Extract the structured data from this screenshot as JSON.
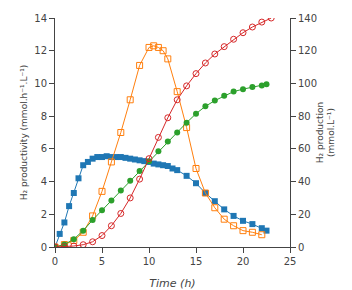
{
  "chart_data": {
    "type": "line",
    "xlabel": "Time (h)",
    "ylabel": "H₂ productivity (mmol.h⁻¹.L⁻¹)",
    "y2label": "H₂ production\n(mmol.L⁻¹)",
    "xlim": [
      0,
      25
    ],
    "ylim": [
      0,
      14
    ],
    "y2lim": [
      0,
      140
    ],
    "xticks": [
      0,
      5,
      10,
      15,
      20,
      25
    ],
    "yticks": [
      0,
      2,
      4,
      6,
      8,
      10,
      12,
      14
    ],
    "y2ticks": [
      0,
      20,
      40,
      60,
      80,
      100,
      120,
      140
    ],
    "grid": false,
    "series": [
      {
        "marker": "square",
        "x": [
          0,
          0.5,
          1,
          1.5,
          2,
          2.5,
          3,
          3.5,
          4,
          4.5,
          5,
          5.5,
          6,
          6.5,
          7,
          7.5,
          8,
          8.5,
          9,
          9.5,
          10,
          10.5,
          11,
          11.5,
          12,
          12.5,
          13,
          14,
          15,
          16,
          17,
          18,
          19,
          20,
          21,
          22,
          22.5
        ],
        "values": [
          0,
          0.8,
          1.5,
          2.5,
          3.3,
          4.2,
          5.0,
          5.2,
          5.4,
          5.5,
          5.5,
          5.55,
          5.5,
          5.5,
          5.5,
          5.45,
          5.4,
          5.35,
          5.3,
          5.25,
          5.2,
          5.1,
          5.05,
          5.0,
          4.95,
          4.8,
          4.7,
          4.35,
          3.9,
          3.3,
          2.8,
          2.3,
          1.9,
          1.6,
          1.4,
          1.15,
          1.0
        ]
      },
      {
        "marker": "square-open",
        "x": [
          0,
          1,
          2,
          3,
          4,
          5,
          6,
          7,
          8,
          9,
          10,
          10.5,
          11,
          11.5,
          12,
          13,
          14,
          15,
          16,
          17,
          18,
          19,
          20,
          21,
          22
        ],
        "values": [
          0,
          0.15,
          0.4,
          0.9,
          1.9,
          3.4,
          5.2,
          7.0,
          9.0,
          11.1,
          12.2,
          12.3,
          12.2,
          12.0,
          11.5,
          9.5,
          7.3,
          4.8,
          3.3,
          2.4,
          1.7,
          1.3,
          1.0,
          0.9,
          0.75
        ]
      },
      {
        "marker": "circle",
        "axis": "y2",
        "x": [
          0,
          1,
          2,
          3,
          4,
          5,
          6,
          7,
          8,
          9,
          10,
          11,
          12,
          13,
          14,
          15,
          16,
          17,
          18,
          19,
          20,
          21,
          22,
          22.5
        ],
        "values": [
          0,
          1.5,
          4.8,
          10.0,
          16.5,
          22.5,
          28.5,
          34.5,
          40.5,
          46.5,
          52.5,
          58.5,
          64.5,
          70.0,
          76.0,
          81.5,
          86.0,
          89.5,
          92.5,
          95.0,
          96.5,
          97.8,
          98.8,
          99.5
        ]
      },
      {
        "marker": "circle-open",
        "axis": "y2",
        "x": [
          0,
          1,
          2,
          3,
          4,
          5,
          6,
          7,
          8,
          9,
          10,
          11,
          12,
          13,
          14,
          15,
          16,
          17,
          18,
          19,
          20,
          21,
          22,
          23
        ],
        "values": [
          0,
          0.2,
          0.6,
          1.4,
          3.2,
          7.0,
          13.0,
          20.5,
          30.0,
          41.5,
          54.0,
          67.0,
          79.0,
          90.0,
          98.5,
          106.0,
          112.5,
          118.0,
          122.5,
          127.0,
          131.0,
          134.5,
          137.5,
          140.0
        ]
      }
    ]
  }
}
